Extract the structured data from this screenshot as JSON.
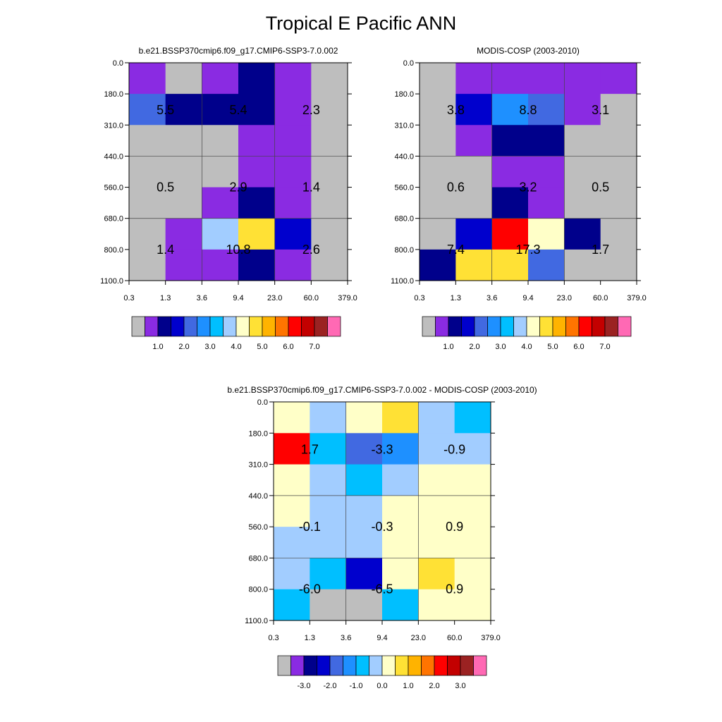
{
  "figure_title": "Tropical E Pacific ANN",
  "colors": {
    "abs_palette": [
      "#bebebe",
      "#8a2be2",
      "#00008b",
      "#0000cd",
      "#4169e1",
      "#1e90ff",
      "#00bfff",
      "#a2cdff",
      "#ffffc8",
      "#ffe135",
      "#ffb300",
      "#ff7400",
      "#ff0000",
      "#c30000",
      "#9b2222",
      "#ff69b4"
    ],
    "diff_palette": [
      "#bebebe",
      "#8a2be2",
      "#00008b",
      "#0000cd",
      "#4169e1",
      "#1e90ff",
      "#00bfff",
      "#a2cdff",
      "#ffffc8",
      "#ffe135",
      "#ffb300",
      "#ff7400",
      "#ff0000",
      "#c30000",
      "#9b2222",
      "#ff69b4"
    ]
  },
  "chart_data": [
    {
      "type": "heatmap",
      "title": "b.e21.BSSP370cmip6.f09_g17.CMIP6-SSP3-7.0.002",
      "xticks": [
        "0.3",
        "1.3",
        "3.6",
        "9.4",
        "23.0",
        "60.0",
        "379.0"
      ],
      "yticks": [
        "0.0",
        "180.0",
        "310.0",
        "440.0",
        "560.0",
        "680.0",
        "800.0",
        "1100.0"
      ],
      "colorbar": "abs",
      "cell_color_index": [
        [
          1,
          0,
          1,
          2,
          1,
          0
        ],
        [
          4,
          2,
          2,
          2,
          1,
          0
        ],
        [
          0,
          0,
          0,
          1,
          1,
          0
        ],
        [
          0,
          0,
          0,
          1,
          1,
          0
        ],
        [
          0,
          0,
          1,
          2,
          1,
          0
        ],
        [
          0,
          1,
          7,
          9,
          3,
          0
        ],
        [
          0,
          1,
          1,
          2,
          1,
          0
        ]
      ],
      "group_labels": [
        [
          "5.5",
          "5.4",
          "2.3"
        ],
        [
          "0.5",
          "2.9",
          "1.4"
        ],
        [
          "1.4",
          "10.8",
          "2.6"
        ]
      ]
    },
    {
      "type": "heatmap",
      "title": "MODIS-COSP (2003-2010)",
      "xticks": [
        "0.3",
        "1.3",
        "3.6",
        "9.4",
        "23.0",
        "60.0",
        "379.0"
      ],
      "yticks": [
        "0.0",
        "180.0",
        "310.0",
        "440.0",
        "560.0",
        "680.0",
        "800.0",
        "1100.0"
      ],
      "colorbar": "abs",
      "cell_color_index": [
        [
          0,
          1,
          1,
          1,
          1,
          1
        ],
        [
          0,
          3,
          5,
          4,
          1,
          0
        ],
        [
          0,
          1,
          2,
          2,
          0,
          0
        ],
        [
          0,
          0,
          1,
          1,
          0,
          0
        ],
        [
          0,
          0,
          2,
          1,
          0,
          0
        ],
        [
          0,
          3,
          12,
          8,
          2,
          0
        ],
        [
          2,
          9,
          9,
          4,
          0,
          0
        ]
      ],
      "group_labels": [
        [
          "3.8",
          "8.8",
          "3.1"
        ],
        [
          "0.6",
          "3.2",
          "0.5"
        ],
        [
          "7.4",
          "17.3",
          "1.7"
        ]
      ]
    },
    {
      "type": "heatmap",
      "title": "b.e21.BSSP370cmip6.f09_g17.CMIP6-SSP3-7.0.002 - MODIS-COSP (2003-2010)",
      "xticks": [
        "0.3",
        "1.3",
        "3.6",
        "9.4",
        "23.0",
        "60.0",
        "379.0"
      ],
      "yticks": [
        "0.0",
        "180.0",
        "310.0",
        "440.0",
        "560.0",
        "680.0",
        "800.0",
        "1100.0"
      ],
      "colorbar": "diff",
      "cell_color_index": [
        [
          8,
          7,
          8,
          9,
          7,
          6
        ],
        [
          12,
          6,
          4,
          5,
          7,
          7
        ],
        [
          8,
          7,
          6,
          7,
          8,
          8
        ],
        [
          8,
          7,
          7,
          8,
          8,
          8
        ],
        [
          7,
          7,
          7,
          8,
          8,
          8
        ],
        [
          7,
          6,
          3,
          8,
          9,
          8
        ],
        [
          6,
          0,
          0,
          6,
          8,
          8
        ]
      ],
      "group_labels": [
        [
          "1.7",
          "-3.3",
          "-0.9"
        ],
        [
          "-0.1",
          "-0.3",
          "0.9"
        ],
        [
          "-6.0",
          "-6.5",
          "0.9"
        ]
      ]
    }
  ],
  "colorbars": {
    "abs": [
      "1.0",
      "2.0",
      "3.0",
      "4.0",
      "5.0",
      "6.0",
      "7.0"
    ],
    "diff": [
      "-3.0",
      "-2.0",
      "-1.0",
      "0.0",
      "1.0",
      "2.0",
      "3.0"
    ]
  }
}
